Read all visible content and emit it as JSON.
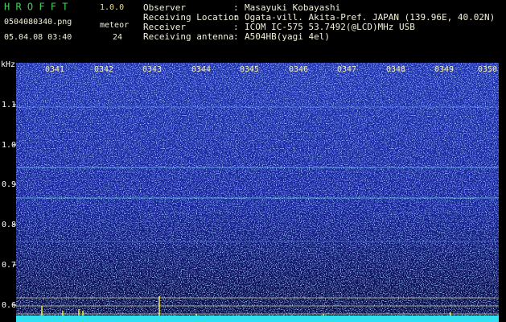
{
  "header": {
    "app_name": "H R O F F T",
    "version": "1.0.0",
    "filename": "0504080340.png",
    "timestamp": "05.04.08 03:40",
    "meteor_label": "meteor",
    "meteor_count": "24"
  },
  "station": {
    "rows": [
      {
        "label": "Observer",
        "value": "Masayuki Kobayashi"
      },
      {
        "label": "Receiving Location",
        "value": "Ogata-vill. Akita-Pref. JAPAN (139.96E, 40.02N)"
      },
      {
        "label": "Receiver",
        "value": "ICOM IC-575 53.7492(@LCD)MHz USB"
      },
      {
        "label": "Receiving antenna",
        "value": "A504HB(yagi 4el)"
      }
    ]
  },
  "spectrogram": {
    "unit": "kHz",
    "freq_labels": [
      "1.1",
      "1.0",
      "0.9",
      "0.8",
      "0.7",
      "0.6"
    ],
    "time_labels": [
      "0341",
      "0342",
      "0343",
      "0344",
      "0345",
      "0346",
      "0347",
      "0348",
      "0349",
      "0350"
    ]
  }
}
